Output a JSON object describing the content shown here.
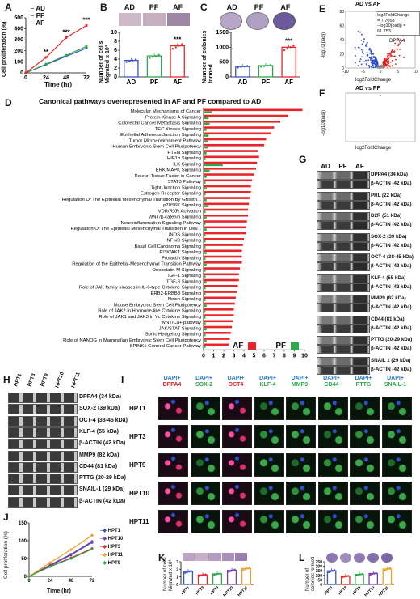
{
  "panels": {
    "A": {
      "label": "A",
      "ylabel": "Cell proliferation (%)",
      "xlabel": "Time (hr)",
      "legend": [
        "AD",
        "PF",
        "AF"
      ],
      "stars": [
        "**",
        "***",
        "***"
      ]
    },
    "B": {
      "label": "B",
      "ylabel": "Number of cells Migrated x 10³",
      "headers": [
        "AD",
        "PF",
        "AF"
      ],
      "stars": "***"
    },
    "C": {
      "label": "C",
      "ylabel": "Number of colonies formed",
      "headers": [
        "AD",
        "PF",
        "AF"
      ],
      "stars": "***"
    },
    "D": {
      "label": "D",
      "title": "Canonical pathways overrepresented in AF and PF compared to AD",
      "legend": [
        {
          "name": "AF",
          "color": "#e8262a"
        },
        {
          "name": "PF",
          "color": "#2ea84a"
        }
      ]
    },
    "E": {
      "label": "E",
      "title": "AD vs AF",
      "ylabel": "-log10(padj)",
      "xlabel": "log2FoldChange",
      "box": [
        "log2FoldChange",
        "= 7.7058",
        "−log10(padj) = 61.753"
      ],
      "gene": "DPPA4"
    },
    "F": {
      "label": "F",
      "title": "AD vs PF",
      "ylabel": "-log10(padj)",
      "xlabel": "log2FoldChange"
    },
    "G": {
      "label": "G",
      "headers": [
        "AD",
        "PF",
        "AF"
      ],
      "bands": [
        "DPPA4 (34 kDa)",
        "β-ACTIN (42 kDa)",
        "PRL (22 kDa)",
        "β-ACTIN (42 kDa)",
        "D2R (51 kDa)",
        "β-ACTIN (42 kDa)",
        "SOX-2 (39 kDa)",
        "β-ACTIN (42 kDa)",
        "OCT-4 (38-45 kDa)",
        "β-ACTIN (42 kDa)",
        "KLF-4 (55 kDa)",
        "β-ACTIN (42 kDa)",
        "MMP9 (82 kDa)",
        "β-ACTIN (42 kDa)",
        "CD44 (81 kDa)",
        "β-ACTIN (42 kDa)",
        "PTTG (20-29 kDa)",
        "β-ACTIN (42 kDa)",
        "SNAIL 1 (29 kDa)",
        "β-ACTIN (42 kDa)"
      ]
    },
    "H": {
      "label": "H",
      "headers": [
        "HPT1",
        "HPT3",
        "HPT9",
        "HPT10",
        "HPT11"
      ],
      "bands": [
        "DPPA4 (34 kDa)",
        "SOX-2 (39 kDa)",
        "OCT-4 (38-45 kDa)",
        "KLF-4 (55 kDa)",
        "β-ACTIN (42 kDa)",
        "MMP9 (82 kDa)",
        "CD44 (81 kDa)",
        "PTTG (20-29 kDa)",
        "SNAIL-1 (29 kDa)",
        "β-ACTIN (42 kDa)"
      ]
    },
    "I": {
      "label": "I",
      "columns": [
        {
          "dapi": "DAPI+",
          "marker": "DPPA4",
          "color": "#e8262a"
        },
        {
          "dapi": "DAPI+",
          "marker": "SOX-2",
          "color": "#2ea84a"
        },
        {
          "dapi": "DAPI+",
          "marker": "OCT4",
          "color": "#e8262a"
        },
        {
          "dapi": "DAPI+",
          "marker": "KLF-4",
          "color": "#2ea84a"
        },
        {
          "dapi": "DAPI+",
          "marker": "MMP9",
          "color": "#2ea84a"
        },
        {
          "dapi": "DAPI+",
          "marker": "CD44",
          "color": "#2ea84a"
        },
        {
          "dapi": "DAPI+",
          "marker": "PTTG",
          "color": "#2ea84a"
        },
        {
          "dapi": "DAPI+",
          "marker": "SNAIL-1",
          "color": "#2ea84a"
        }
      ],
      "rows": [
        "HPT1",
        "HPT3",
        "HPT9",
        "HPT10",
        "HPT11"
      ]
    },
    "J": {
      "label": "J",
      "ylabel": "Cell proliferation (%)",
      "xlabel": "Time (hr)",
      "legend": [
        "HPT1",
        "HPT10",
        "HPT3",
        "HPT11",
        "HPT9"
      ]
    },
    "K": {
      "label": "K",
      "ylabel": "Number of cells Migrated x 10³"
    },
    "L": {
      "label": "L",
      "ylabel": "Number of colonies formed"
    }
  },
  "chart_data": [
    {
      "id": "A",
      "type": "line",
      "x": [
        0,
        24,
        48,
        72
      ],
      "xlim": [
        0,
        72
      ],
      "ylim": [
        0,
        500
      ],
      "yticks": [
        0,
        100,
        200,
        300,
        400,
        500
      ],
      "series": [
        {
          "name": "AD",
          "color": "#3b57c4",
          "values": [
            0,
            75,
            150,
            225
          ]
        },
        {
          "name": "PF",
          "color": "#2ea84a",
          "values": [
            0,
            80,
            160,
            240
          ]
        },
        {
          "name": "AF",
          "color": "#e8262a",
          "values": [
            0,
            140,
            320,
            430
          ]
        }
      ]
    },
    {
      "id": "B",
      "type": "bar",
      "categories": [
        "AD",
        "PF",
        "AF"
      ],
      "values": [
        3.7,
        4.7,
        7.0
      ],
      "ylim": [
        0,
        10
      ],
      "yticks": [
        0,
        2,
        4,
        6,
        8,
        10
      ],
      "colors": [
        "#3b57c4",
        "#2ea84a",
        "#e8262a"
      ]
    },
    {
      "id": "C",
      "type": "bar",
      "categories": [
        "AD",
        "PF",
        "AF"
      ],
      "values": [
        350,
        380,
        1000
      ],
      "ylim": [
        0,
        1500
      ],
      "yticks": [
        0,
        500,
        1000,
        1500
      ],
      "colors": [
        "#3b57c4",
        "#2ea84a",
        "#e8262a"
      ]
    },
    {
      "id": "D",
      "type": "bar",
      "xlim": [
        0,
        10
      ],
      "xticks": [
        0,
        1,
        2,
        3,
        4,
        5,
        6,
        7,
        8,
        9,
        10
      ],
      "categories": [
        "Molecular Mechanisms of Cancer",
        "Protein Kinase A Signaling",
        "Colorectal Cancer Metastasis Signaling",
        "TEC Kinase Signaling",
        "Epithelial Adherens Junction Signaling",
        "Tumor Microenvironment Pathway",
        "Human Embryonic Stem Cell Pluripotency",
        "PTEN Signaling",
        "HIF1α Signaling",
        "ILK Signaling",
        "ERK/MAPK Signaling",
        "Role of Tissue Factor in Cancer",
        "STAT3 Pathway",
        "Tight Junction Signaling",
        "Estrogen Receptor Signaling",
        "Regulation Of The Epithelial Mesenchymal Transition By Growth...",
        "p70S6K Signaling",
        "VDR/RXR Activation",
        "WNT/β-catenin Signaling",
        "Neuroinflammation Signaling Pathway",
        "Regulation Of The Epithelial Mesenchymal Transition In Dev...",
        "iNOS Signaling",
        "NF-κB Signaling",
        "Basal Cell Carcinoma Signaling",
        "PI3K/AKT Signaling",
        "Prolactin Signaling",
        "Regulation of the Epithelial-Mesenchymal Transition Pathway",
        "Oncostatin M Signaling",
        "IGF-1 Signaling",
        "TGF-β Signaling",
        "Role of JAK family kinases in IL-6-type Cytokine Signaling",
        "ERB2-ERBB3 Signaling",
        "Notch Signaling",
        "Mouse Embryonic Stem Cell Pluripotency",
        "Role of JAK2 in Hormone-like Cytokine Signaling",
        "Role of JAK1 and JAK3 in Yc Cytokine Signaling",
        "WNT/Ca+ pathway",
        "JAK/STAT Signaling",
        "Sonic Hedgehog Signaling",
        "Role of NANOG in Mammalian Embryonic Stem Cell Pluripotency",
        "SPINK1 General Cancer Pathway"
      ],
      "series": [
        {
          "name": "AF",
          "color": "#e8262a",
          "values": [
            9.8,
            8.4,
            7.6,
            7.0,
            6.7,
            6.2,
            6.0,
            5.4,
            5.5,
            5.3,
            5.2,
            5.0,
            4.8,
            4.7,
            4.7,
            4.6,
            4.5,
            4.4,
            4.4,
            4.3,
            4.2,
            4.2,
            4.0,
            3.9,
            3.8,
            3.8,
            3.8,
            3.6,
            3.5,
            3.5,
            3.4,
            3.3,
            3.2,
            3.1,
            3.0,
            3.0,
            2.9,
            2.8,
            2.7,
            2.6,
            2.5
          ]
        },
        {
          "name": "PF",
          "color": "#2ea84a",
          "values": [
            0.8,
            0.5,
            0.6,
            0.3,
            0.5,
            0.4,
            0.4,
            0.3,
            0.2,
            1.9,
            0.6,
            0.3,
            0.2,
            0.3,
            0.2,
            0.3,
            0.5,
            0.2,
            0.3,
            0.2,
            0.3,
            0.2,
            0.2,
            0.2,
            0.3,
            0.2,
            0.3,
            0.2,
            0.2,
            0.3,
            0.2,
            0.2,
            0.2,
            0.3,
            0.2,
            0.2,
            0.2,
            0.3,
            0.2,
            0.3,
            0.2
          ]
        }
      ]
    },
    {
      "id": "E",
      "type": "scatter",
      "xlim": [
        -10,
        10
      ],
      "ylim": [
        0,
        80
      ],
      "xticks": [
        -10,
        -5,
        0,
        5,
        10
      ],
      "yticks": [
        0,
        20,
        40,
        60,
        80
      ]
    },
    {
      "id": "F",
      "type": "scatter",
      "xlim": [
        -10,
        10
      ],
      "ylim": [
        0,
        80
      ]
    },
    {
      "id": "J",
      "type": "line",
      "x": [
        0,
        24,
        48,
        72
      ],
      "xlim": [
        0,
        72
      ],
      "ylim": [
        0,
        150
      ],
      "yticks": [
        0,
        50,
        100,
        150
      ],
      "series": [
        {
          "name": "HPT1",
          "color": "#3b57c4",
          "values": [
            0,
            30,
            60,
            95
          ]
        },
        {
          "name": "HPT10",
          "color": "#7b3fa8",
          "values": [
            0,
            32,
            62,
            98
          ]
        },
        {
          "name": "HPT3",
          "color": "#e8262a",
          "values": [
            0,
            28,
            52,
            78
          ]
        },
        {
          "name": "HPT11",
          "color": "#f0a020",
          "values": [
            0,
            38,
            75,
            115
          ]
        },
        {
          "name": "HPT9",
          "color": "#2ea84a",
          "values": [
            0,
            27,
            50,
            76
          ]
        }
      ]
    },
    {
      "id": "K",
      "type": "bar",
      "categories": [
        "HPT1",
        "HPT3",
        "HPT9",
        "HPT10",
        "HPT11"
      ],
      "values": [
        1.7,
        1.25,
        1.4,
        1.85,
        2.1
      ],
      "ylim": [
        0,
        3
      ],
      "yticks": [
        0,
        1,
        2,
        3
      ],
      "colors": [
        "#3b57c4",
        "#e8262a",
        "#2ea84a",
        "#7b3fa8",
        "#f0a020"
      ]
    },
    {
      "id": "L",
      "type": "bar",
      "categories": [
        "HPT1",
        "HPT3",
        "HPT9",
        "HPT10",
        "HPT11"
      ],
      "values": [
        150,
        90,
        110,
        120,
        170
      ],
      "ylim": [
        0,
        250
      ],
      "yticks": [
        0,
        50,
        100,
        150,
        200,
        250
      ],
      "colors": [
        "#3b57c4",
        "#e8262a",
        "#2ea84a",
        "#7b3fa8",
        "#f0a020"
      ]
    }
  ]
}
